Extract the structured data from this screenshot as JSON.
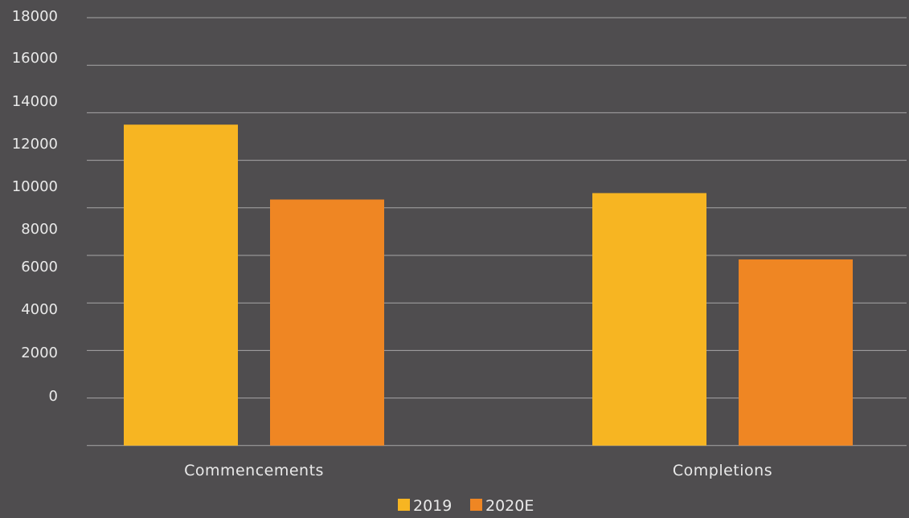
{
  "chart_data": {
    "type": "bar",
    "title": "",
    "xlabel": "",
    "ylabel": "",
    "categories": [
      "Commencements",
      "Completions"
    ],
    "series": [
      {
        "name": "2019",
        "values": [
          15000,
          11800
        ],
        "color": "#f7b522"
      },
      {
        "name": "2020E",
        "values": [
          11500,
          8700
        ],
        "color": "#ef8623"
      }
    ],
    "y_ticks": [
      "18000",
      "16000",
      "14000",
      "12000",
      "10000",
      "8000",
      "6000",
      "4000",
      "2000",
      "0"
    ],
    "ylim": [
      0,
      20000
    ],
    "grid": true,
    "legend_position": "bottom-center",
    "background": "#4f4d4f",
    "grid_color": "#a7a6a7",
    "text_color": "#e9e9e9"
  }
}
